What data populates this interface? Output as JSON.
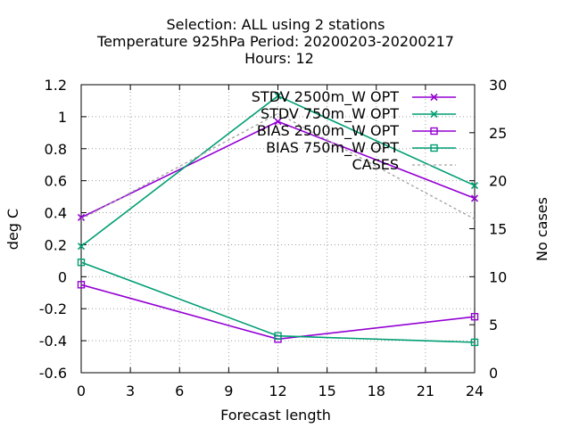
{
  "title_lines": [
    "Selection: ALL using     2 stations",
    "Temperature 925hPa    Period: 20200203-20200217",
    "Hours:  12"
  ],
  "chart_data": {
    "type": "line",
    "title": "Selection: ALL using     2 stations / Temperature 925hPa    Period: 20200203-20200217 / Hours:  12",
    "xlabel": "Forecast length",
    "ylabel": "deg C",
    "y2label": "No cases",
    "xlim": [
      0,
      24
    ],
    "ylim": [
      -0.6,
      1.2
    ],
    "y2lim": [
      0,
      30
    ],
    "x_ticks": [
      "0",
      "3",
      "6",
      "9",
      "12",
      "15",
      "18",
      "21",
      "24"
    ],
    "y_ticks": [
      "-0.6",
      "-0.4",
      "-0.2",
      "0",
      "0.2",
      "0.4",
      "0.6",
      "0.8",
      "1",
      "1.2"
    ],
    "y2_ticks": [
      "0",
      "5",
      "10",
      "15",
      "20",
      "25",
      "30"
    ],
    "grid": true,
    "legend_position": "top-right",
    "x": [
      0,
      12,
      24
    ],
    "series": [
      {
        "name": "STDV 2500m_W OPT",
        "axis": "y",
        "marker": "x",
        "color": "#9400d3",
        "values": [
          0.37,
          0.97,
          0.49
        ]
      },
      {
        "name": "STDV 750m_W OPT",
        "axis": "y",
        "marker": "x",
        "color": "#009e73",
        "values": [
          0.19,
          1.13,
          0.57
        ]
      },
      {
        "name": "BIAS 2500m_W OPT",
        "axis": "y",
        "marker": "square",
        "color": "#9400d3",
        "values": [
          -0.05,
          -0.39,
          -0.25
        ]
      },
      {
        "name": "BIAS 750m_W OPT",
        "axis": "y",
        "marker": "square",
        "color": "#009e73",
        "values": [
          0.09,
          -0.37,
          -0.41
        ]
      },
      {
        "name": "CASES",
        "axis": "y2",
        "marker": "none",
        "color": "#a0a0a0",
        "dash": true,
        "values": [
          16,
          27,
          16
        ]
      }
    ]
  }
}
